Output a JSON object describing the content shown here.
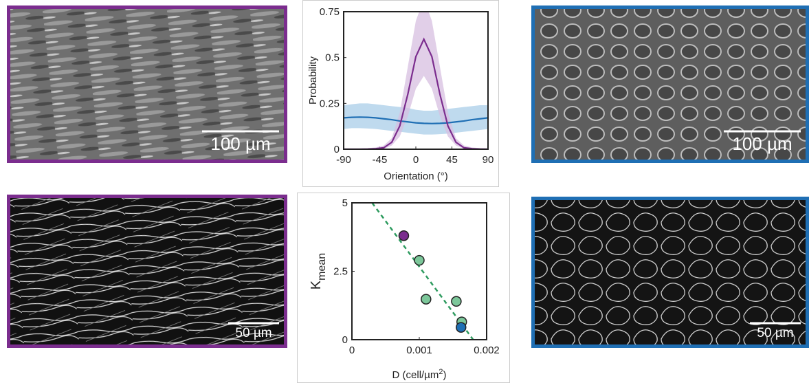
{
  "chart_data": [
    {
      "type": "line",
      "xlabel": "Orientation (°)",
      "ylabel": "Probability",
      "xlim": [
        -90,
        90
      ],
      "xticks": [
        -90,
        -45,
        0,
        45,
        90
      ],
      "ylim": [
        0,
        0.75
      ],
      "yticks": [
        0,
        0.25,
        0.5,
        0.75
      ],
      "x": [
        -90,
        -80,
        -70,
        -60,
        -50,
        -40,
        -30,
        -20,
        -10,
        0,
        10,
        20,
        30,
        40,
        50,
        60,
        70,
        80,
        90
      ],
      "series": [
        {
          "color": "#1f6fb4",
          "band_color": "#a9cde8",
          "values": [
            0.171,
            0.174,
            0.175,
            0.174,
            0.171,
            0.166,
            0.161,
            0.154,
            0.149,
            0.144,
            0.141,
            0.14,
            0.141,
            0.144,
            0.149,
            0.154,
            0.161,
            0.166,
            0.171
          ],
          "lower": [
            0.11,
            0.115,
            0.115,
            0.113,
            0.11,
            0.105,
            0.1,
            0.095,
            0.09,
            0.085,
            0.08,
            0.08,
            0.082,
            0.085,
            0.09,
            0.095,
            0.1,
            0.105,
            0.11
          ],
          "upper": [
            0.24,
            0.245,
            0.25,
            0.25,
            0.245,
            0.24,
            0.235,
            0.23,
            0.225,
            0.215,
            0.21,
            0.21,
            0.215,
            0.22,
            0.225,
            0.23,
            0.235,
            0.24,
            0.24
          ]
        },
        {
          "color": "#7b2d8e",
          "band_color": "#d7bfe0",
          "values": [
            0,
            0,
            0,
            0.001,
            0.003,
            0.008,
            0.038,
            0.127,
            0.3,
            0.505,
            0.6,
            0.505,
            0.3,
            0.127,
            0.038,
            0.008,
            0.003,
            0.001,
            0
          ],
          "lower": [
            0,
            0,
            0,
            0,
            0,
            0.002,
            0.02,
            0.07,
            0.18,
            0.33,
            0.4,
            0.33,
            0.18,
            0.07,
            0.02,
            0.002,
            0,
            0,
            0
          ],
          "upper": [
            0.005,
            0.005,
            0.005,
            0.006,
            0.01,
            0.02,
            0.06,
            0.2,
            0.45,
            0.7,
            0.82,
            0.7,
            0.45,
            0.2,
            0.06,
            0.02,
            0.01,
            0.006,
            0.005
          ]
        }
      ]
    },
    {
      "type": "scatter",
      "xlabel": "D (cell/µm",
      "xlabel_sup": "2",
      "xlabel_end": ")",
      "ylabel": "K",
      "ylabel_sub": "mean",
      "xlim": [
        0,
        0.002
      ],
      "xticks": [
        0,
        0.001,
        0.002
      ],
      "ylim": [
        0,
        5
      ],
      "yticks": [
        0,
        2.5,
        5
      ],
      "x": [
        0.00077,
        0.001,
        0.0011,
        0.00155,
        0.00163,
        0.00162
      ],
      "values": [
        3.8,
        2.9,
        1.48,
        1.4,
        0.65,
        0.45
      ],
      "colors": [
        "#7b2d8e",
        "#7cc79a",
        "#7cc79a",
        "#7cc79a",
        "#7cc79a",
        "#1f6fb4"
      ],
      "fit": {
        "x": [
          0.0003,
          0.0018
        ],
        "y": [
          5,
          0
        ],
        "color": "#2e9b5f"
      }
    }
  ],
  "images": [
    {
      "scale_label": "100 µm",
      "border": "#7b2d8e",
      "style": "phase"
    },
    {
      "scale_label": "100 µm",
      "border": "#1f6fb4",
      "style": "phase"
    },
    {
      "scale_label": "50 µm",
      "border": "#7b2d8e",
      "style": "fluor"
    },
    {
      "scale_label": "50 µm",
      "border": "#1f6fb4",
      "style": "fluor"
    }
  ]
}
